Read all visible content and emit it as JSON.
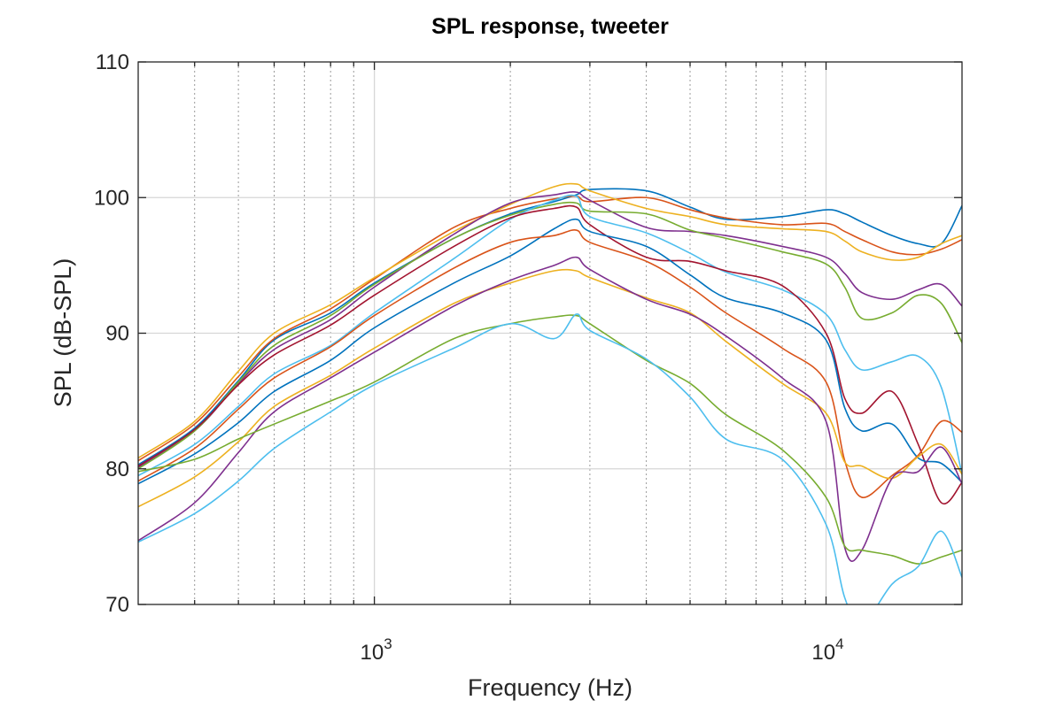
{
  "chart_data": {
    "type": "line",
    "title": "SPL response, tweeter",
    "xlabel": "Frequency (Hz)",
    "ylabel": "SPL (dB-SPL)",
    "xscale": "log",
    "xlim": [
      300,
      20000
    ],
    "ylim": [
      70,
      110
    ],
    "grid": true,
    "y_ticks": [
      "70",
      "80",
      "90",
      "100",
      "110"
    ],
    "x_ticks": [
      {
        "base": "10",
        "exp": "3"
      },
      {
        "base": "10",
        "exp": "4"
      }
    ],
    "x": [
      300,
      400,
      500,
      600,
      800,
      1000,
      1500,
      2000,
      2500,
      2800,
      3000,
      4000,
      5000,
      6000,
      8000,
      10000,
      11000,
      12000,
      14000,
      16000,
      18000,
      20000
    ],
    "series": [
      {
        "color": "#0072BD",
        "values": [
          80.3,
          83,
          86.5,
          89.5,
          91.5,
          93.7,
          97,
          98.8,
          99.7,
          100.2,
          100.6,
          100.5,
          99.3,
          98.4,
          98.6,
          99.1,
          98.8,
          98.2,
          97.2,
          96.6,
          96.6,
          99.4
        ]
      },
      {
        "color": "#D95319",
        "values": [
          80.6,
          83.3,
          86.8,
          89.6,
          91.8,
          94,
          97.8,
          99.2,
          99.9,
          100.1,
          99.7,
          100,
          99.1,
          98.5,
          98,
          98.1,
          97.5,
          96.9,
          96,
          95.8,
          96.2,
          96.9
        ]
      },
      {
        "color": "#EDB120",
        "values": [
          80.8,
          83.5,
          87.2,
          90,
          92.1,
          94.1,
          97.5,
          99.5,
          100.8,
          101,
          100.5,
          99.2,
          98.6,
          98,
          97.7,
          97.5,
          96.8,
          96,
          95.4,
          95.6,
          96.6,
          97.2
        ]
      },
      {
        "color": "#7E2F8E",
        "values": [
          80.1,
          82.8,
          86.3,
          88.8,
          91,
          93.4,
          97.3,
          99.6,
          100.2,
          100.4,
          99.8,
          97.8,
          97.5,
          97.2,
          96.4,
          95.6,
          94.4,
          93,
          92.5,
          93.2,
          93.6,
          92
        ]
      },
      {
        "color": "#77AC30",
        "values": [
          80,
          82.8,
          86.4,
          89.1,
          91.3,
          93.6,
          97,
          98.7,
          99.5,
          99.6,
          99,
          98.8,
          97.6,
          97,
          96,
          95.1,
          93.4,
          91.1,
          91.5,
          92.8,
          92.2,
          89.3
        ]
      },
      {
        "color": "#4DBEEE",
        "values": [
          79.5,
          81.8,
          84.6,
          87,
          89.1,
          91.5,
          95.5,
          98.4,
          99.8,
          100.1,
          98.6,
          97.4,
          95.9,
          94.5,
          93.2,
          91.4,
          88.8,
          87.3,
          87.9,
          88.3,
          86,
          79.6
        ]
      },
      {
        "color": "#A2142F",
        "values": [
          80.2,
          82.9,
          86.2,
          88.4,
          90.6,
          92.8,
          96.4,
          98.5,
          99.2,
          99.3,
          98,
          95.6,
          95.3,
          94.6,
          93.5,
          90,
          85.2,
          84.1,
          85.7,
          81.8,
          77.5,
          79
        ]
      },
      {
        "color": "#0072BD",
        "values": [
          78.9,
          81.1,
          83.4,
          85.7,
          88,
          90.4,
          93.7,
          95.7,
          97.7,
          98.4,
          97.5,
          96.4,
          94.3,
          92.6,
          91.5,
          89.5,
          84.5,
          82.8,
          83.3,
          80.8,
          80.4,
          79
        ]
      },
      {
        "color": "#D95319",
        "values": [
          79.1,
          81.5,
          84.4,
          86.7,
          89,
          91.3,
          94.8,
          96.7,
          97.2,
          97.6,
          96.7,
          95.3,
          93.4,
          91.5,
          88.9,
          86.4,
          80.6,
          77.9,
          79.5,
          81,
          83.5,
          82.7
        ]
      },
      {
        "color": "#EDB120",
        "values": [
          77.2,
          79.4,
          82,
          84.6,
          86.9,
          88.9,
          92.2,
          93.7,
          94.6,
          94.6,
          94.1,
          92.6,
          91.5,
          89.4,
          86.3,
          84.1,
          80.5,
          80.2,
          79.3,
          80.9,
          81.8,
          79.6
        ]
      },
      {
        "color": "#7E2F8E",
        "values": [
          74.7,
          77.5,
          81.2,
          84.2,
          86.7,
          88.6,
          92,
          93.9,
          95,
          95.6,
          94.7,
          92.5,
          91.4,
          89.8,
          86.7,
          83.5,
          74.2,
          74,
          79.3,
          79.8,
          81.6,
          78.9
        ]
      },
      {
        "color": "#77AC30",
        "values": [
          79.8,
          80.7,
          82.2,
          83.3,
          85,
          86.4,
          89.6,
          90.7,
          91.2,
          91.3,
          90.7,
          88,
          86.3,
          84,
          81.4,
          77.9,
          74.3,
          74,
          73.6,
          73,
          73.5,
          74
        ]
      },
      {
        "color": "#4DBEEE",
        "values": [
          74.6,
          76.7,
          79.1,
          81.5,
          84.2,
          86.2,
          88.9,
          90.7,
          89.6,
          91.4,
          90.2,
          88.1,
          85.3,
          82.2,
          80.7,
          75.9,
          70.5,
          68.5,
          71.5,
          72.8,
          75.4,
          72
        ]
      }
    ]
  }
}
